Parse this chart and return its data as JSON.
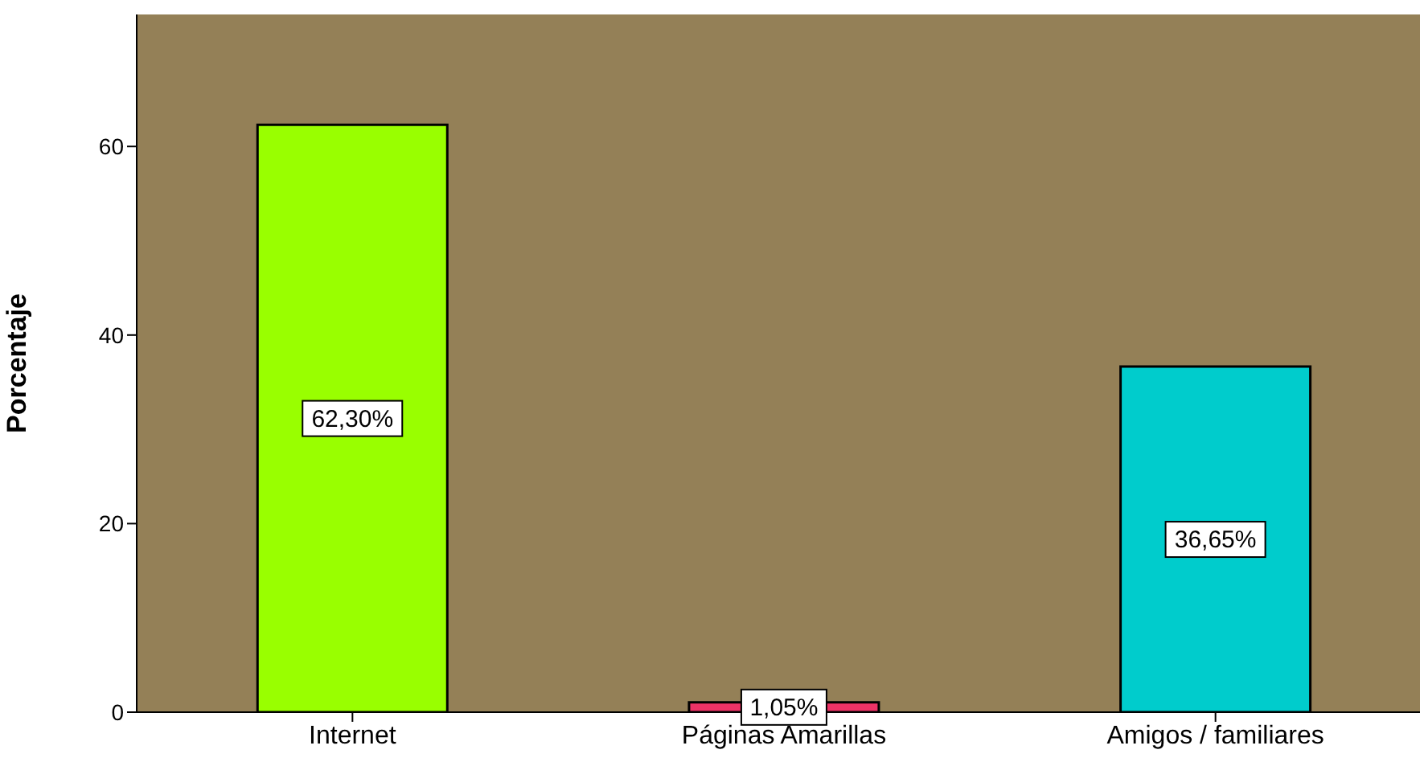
{
  "chart_data": {
    "type": "bar",
    "ylabel": "Porcentaje",
    "categories": [
      "Internet",
      "Páginas Amarillas",
      "Amigos / familiares"
    ],
    "values": [
      62.3,
      1.05,
      36.65
    ],
    "colors": [
      "#99ff00",
      "#ee3366",
      "#00cccc"
    ],
    "value_labels": [
      "62,30%",
      "1,05%",
      "36,65%"
    ],
    "ylim": [
      0,
      74
    ],
    "yticks": [
      0,
      20,
      40,
      60
    ],
    "grid": false,
    "legend": false
  }
}
